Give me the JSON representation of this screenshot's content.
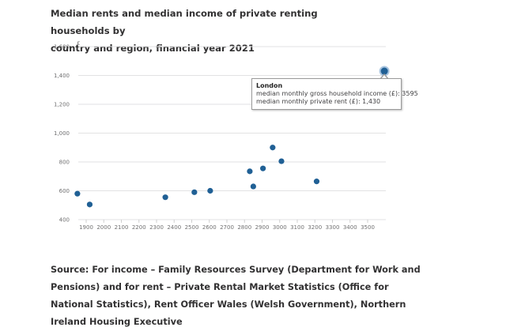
{
  "title_lines": [
    "Median rents and median income of private renting households by",
    "country and region, financial year 2021"
  ],
  "source_lines": [
    "Source: For income – Family Resources Survey (Department for Work and",
    "Pensions) and for rent – Private Rental Market Statistics (Office for",
    "National Statistics), Rent Officer Wales (Welsh Government), Northern",
    "Ireland Housing Executive"
  ],
  "colors": {
    "point": "#206095",
    "grid": "#e2e2e3",
    "axis_text": "#707071",
    "highlight_ring": "#a8c4e0"
  },
  "tooltip": {
    "title": "London",
    "line1": "median monthly gross household income (£): 3595",
    "line2": "median monthly private rent (£): 1,430"
  },
  "chart_data": {
    "type": "scatter",
    "title": "Median rents and median income of private renting households by country and region, financial year 2021",
    "xlabel": "median monthly gross household income (£)",
    "ylabel": "£",
    "xlim": [
      1850,
      3600
    ],
    "ylim": [
      400,
      1600
    ],
    "xticks": [
      1900,
      2000,
      2100,
      2200,
      2300,
      2400,
      2500,
      2600,
      2700,
      2800,
      2900,
      3000,
      3100,
      3200,
      3300,
      3400,
      3500
    ],
    "yticks": [
      400,
      600,
      800,
      1000,
      1200,
      1400,
      1600
    ],
    "ytick_labels": [
      "400",
      "600",
      "800",
      "1,000",
      "1,200",
      "1,400",
      "1,600"
    ],
    "grid": true,
    "legend": "none",
    "points": [
      {
        "x": 1850,
        "y": 580
      },
      {
        "x": 1920,
        "y": 505
      },
      {
        "x": 2350,
        "y": 555
      },
      {
        "x": 2515,
        "y": 590
      },
      {
        "x": 2605,
        "y": 600
      },
      {
        "x": 2830,
        "y": 735
      },
      {
        "x": 2850,
        "y": 630
      },
      {
        "x": 2905,
        "y": 755
      },
      {
        "x": 2960,
        "y": 900
      },
      {
        "x": 3010,
        "y": 805
      },
      {
        "x": 3210,
        "y": 665
      },
      {
        "x": 3595,
        "y": 1430,
        "label": "London",
        "highlighted": true
      }
    ]
  }
}
